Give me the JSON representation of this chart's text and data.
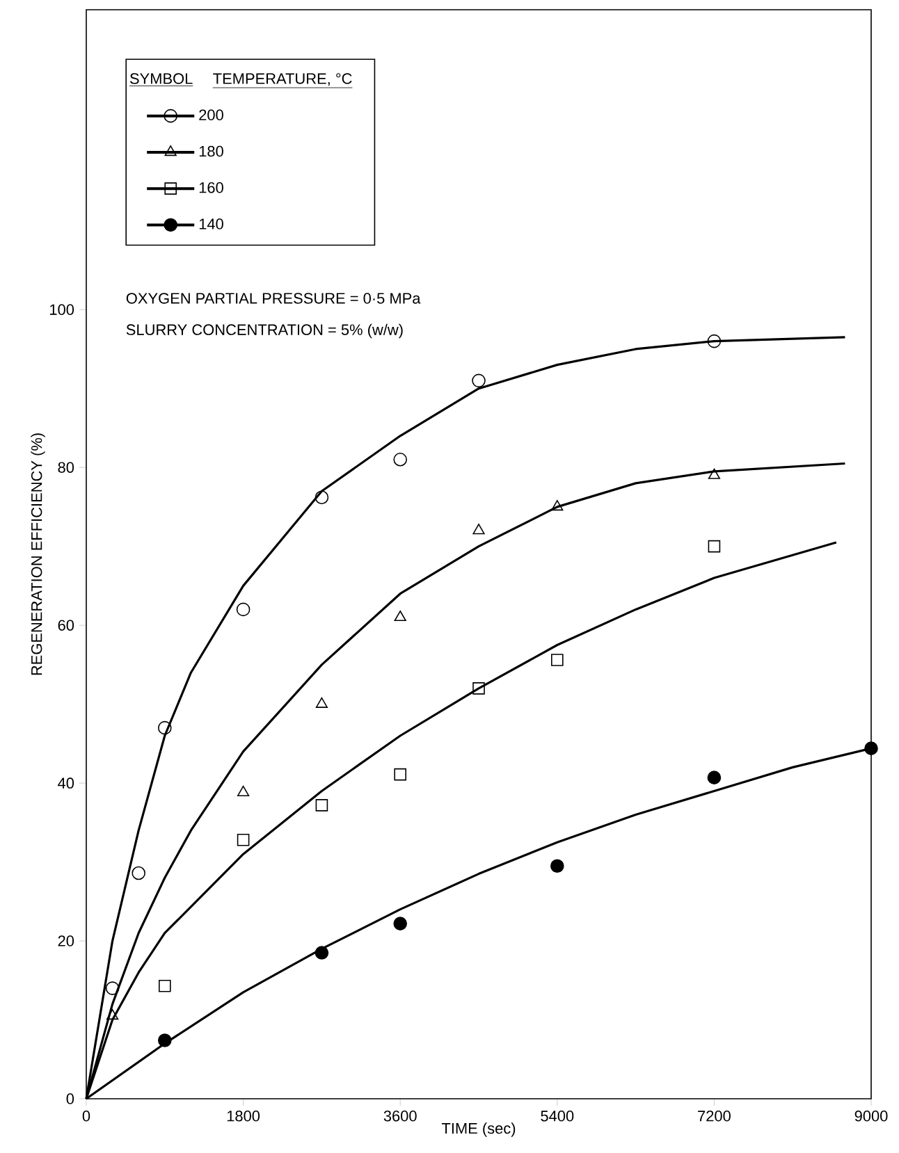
{
  "chart_data": {
    "type": "scatter",
    "xlabel": "TIME (sec)",
    "ylabel": "REGENERATION EFFICIENCY (%)",
    "legend_title": "TEMPERATURE, °C",
    "legend": "top left",
    "annotations": [
      "SYMBOL",
      "OXYGEN PARTIAL PRESSURE = 0·5 MPa",
      "SLURRY CONCENTRATION = 5% (w/w)"
    ],
    "xlim": [
      0,
      9000
    ],
    "ylim": [
      0,
      138
    ],
    "xticks": [
      0,
      1800,
      3600,
      5400,
      7200,
      9000
    ],
    "yticks": [
      0,
      20,
      40,
      60,
      80,
      100
    ],
    "grid": false,
    "series": [
      {
        "name": "200",
        "marker": "circle",
        "color": "#000000",
        "x": [
          300,
          600,
          900,
          1800,
          2700,
          3600,
          4500,
          7200
        ],
        "values": [
          14,
          28.6,
          47,
          62,
          76.2,
          81,
          91,
          96
        ]
      },
      {
        "name": "180",
        "marker": "triangle",
        "color": "#000000",
        "x": [
          300,
          1800,
          2700,
          3600,
          4500,
          5400,
          7200
        ],
        "values": [
          10.5,
          38.8,
          50,
          61,
          72,
          75,
          79
        ]
      },
      {
        "name": "160",
        "marker": "square",
        "color": "#000000",
        "x": [
          900,
          1800,
          2700,
          3600,
          4500,
          5400,
          7200
        ],
        "values": [
          14.3,
          32.8,
          37.2,
          41.1,
          52,
          55.6,
          70
        ]
      },
      {
        "name": "140",
        "marker": "circle",
        "color": "#000000",
        "x": [
          900,
          2700,
          3600,
          5400,
          7200,
          9000
        ],
        "values": [
          7.4,
          18.5,
          22.2,
          29.5,
          40.7,
          44.4
        ]
      },
      {
        "type": "line",
        "marker": "none",
        "line_style": "solid",
        "color": "#000000",
        "x": [
          0,
          150,
          300,
          600,
          900,
          1200,
          1800,
          2700,
          3600,
          4500,
          5400,
          6300,
          7200,
          8700
        ],
        "values": [
          0,
          10,
          20,
          34,
          46,
          54,
          65,
          77,
          84,
          90,
          93,
          95,
          96,
          96.5
        ]
      },
      {
        "type": "line",
        "marker": "none",
        "line_style": "solid",
        "color": "#000000",
        "x": [
          0,
          300,
          600,
          900,
          1200,
          1800,
          2700,
          3600,
          4500,
          5400,
          6300,
          7200,
          8700
        ],
        "values": [
          0,
          12,
          21,
          28,
          34,
          44,
          55,
          64,
          70,
          75,
          78,
          79.5,
          80.5
        ]
      },
      {
        "type": "line",
        "marker": "none",
        "line_style": "solid",
        "color": "#000000",
        "x": [
          0,
          300,
          600,
          900,
          1800,
          2700,
          3600,
          4500,
          5400,
          6300,
          7200,
          8600
        ],
        "values": [
          0,
          10,
          16,
          21,
          31,
          39,
          46,
          52,
          57.5,
          62,
          66,
          70.5
        ]
      },
      {
        "type": "line",
        "marker": "none",
        "line_style": "solid",
        "color": "#000000",
        "x": [
          0,
          900,
          1800,
          2700,
          3600,
          4500,
          5400,
          6300,
          7200,
          8100,
          9000
        ],
        "values": [
          0,
          7,
          13.5,
          19,
          24,
          28.5,
          32.5,
          36,
          39,
          42,
          44.4
        ]
      }
    ]
  }
}
